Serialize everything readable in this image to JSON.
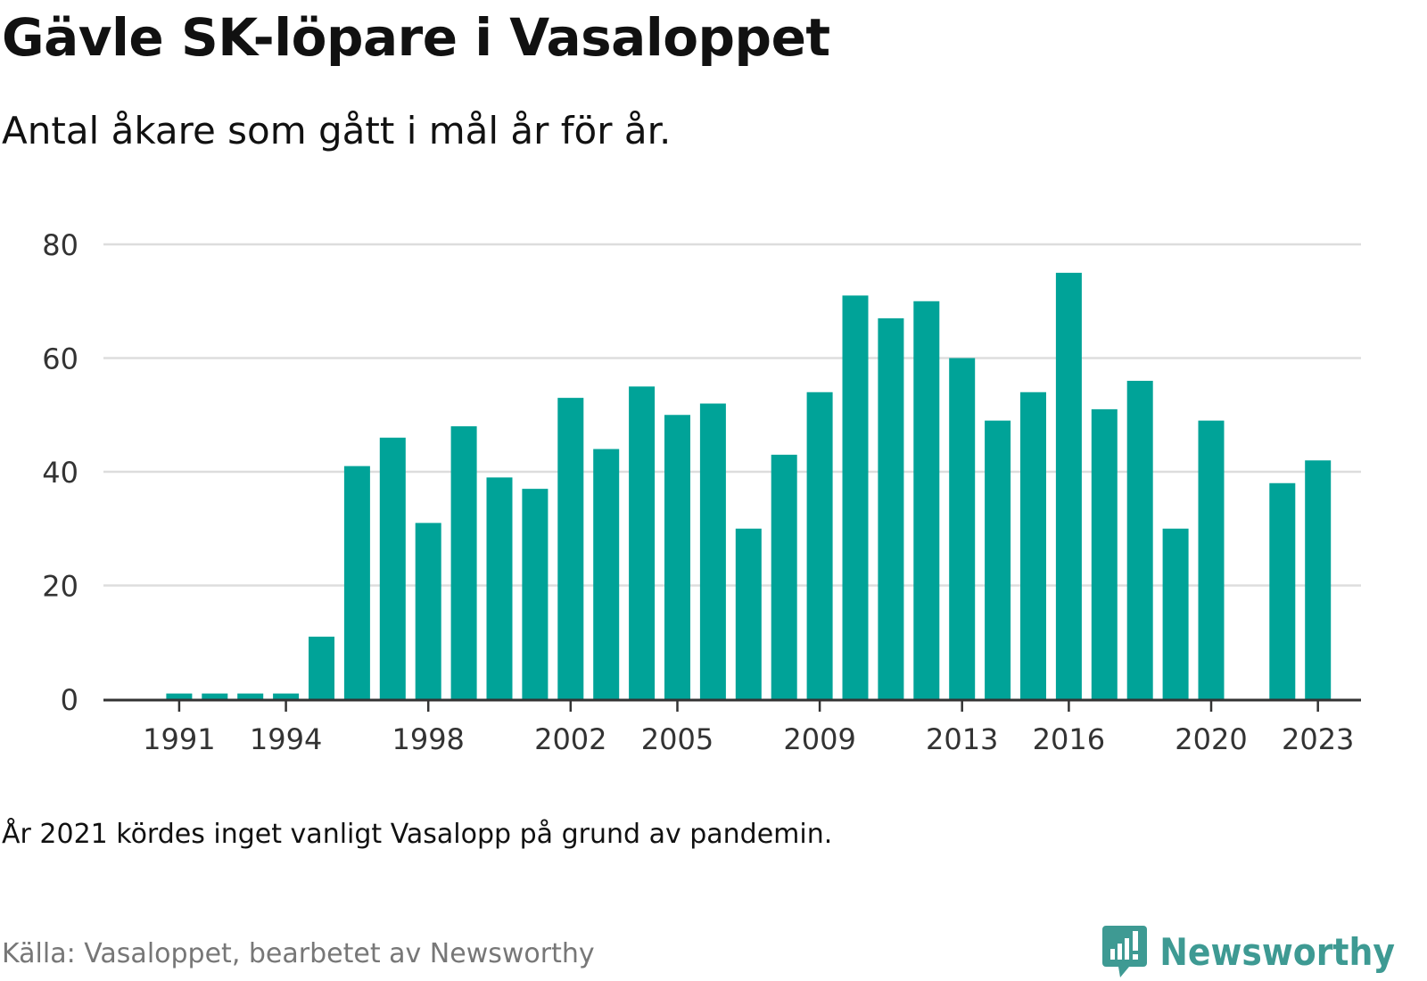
{
  "title": "Gävle SK-löpare i Vasaloppet",
  "subtitle": "Antal åkare som gått i mål år för år.",
  "note": "År 2021 kördes inget vanligt Vasalopp på grund av pandemin.",
  "source": "Källa: Vasaloppet, bearbetet av Newsworthy",
  "brand": {
    "name": "Newsworthy",
    "icon": "newsworthy-logo-icon"
  },
  "colors": {
    "bar": "#00a398",
    "grid": "#dddddd",
    "axis": "#333333",
    "brand": "#3e9a93"
  },
  "chart_data": {
    "type": "bar",
    "categories": [
      1990,
      1991,
      1992,
      1993,
      1994,
      1995,
      1996,
      1997,
      1998,
      1999,
      2000,
      2001,
      2002,
      2003,
      2004,
      2005,
      2006,
      2007,
      2008,
      2009,
      2010,
      2011,
      2012,
      2013,
      2014,
      2015,
      2016,
      2017,
      2018,
      2019,
      2020,
      2021,
      2022,
      2023
    ],
    "values": [
      null,
      1,
      1,
      1,
      1,
      11,
      41,
      46,
      31,
      48,
      39,
      37,
      53,
      44,
      55,
      50,
      52,
      30,
      43,
      54,
      71,
      67,
      70,
      60,
      49,
      54,
      75,
      51,
      56,
      30,
      49,
      null,
      38,
      42
    ],
    "xticks": [
      "1991",
      "1994",
      "1998",
      "2002",
      "2005",
      "2009",
      "2013",
      "2016",
      "2020",
      "2023"
    ],
    "yticks": [
      "0",
      "20",
      "40",
      "60",
      "80"
    ],
    "ylim": [
      0,
      80
    ],
    "grid": true,
    "legend": "none"
  }
}
